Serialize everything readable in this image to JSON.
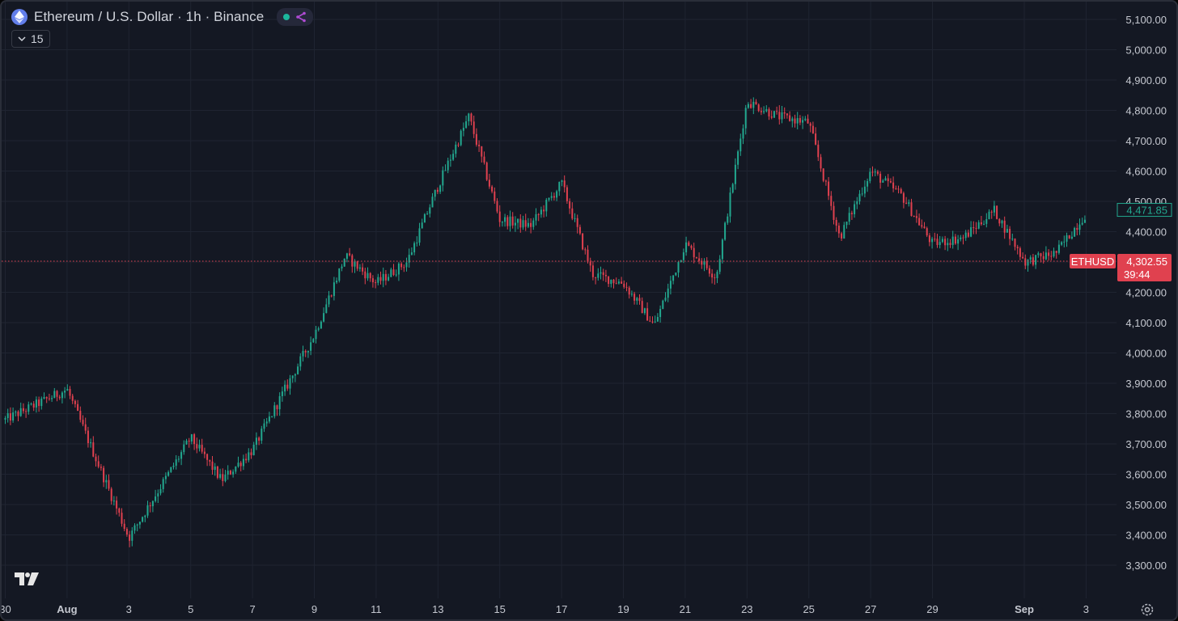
{
  "header": {
    "title": "Ethereum / U.S. Dollar · 1h · Binance",
    "status_icons": [
      "market-open-dot",
      "share-icon"
    ]
  },
  "indicator_toggle": {
    "icon": "chevron-down-icon",
    "value": "15"
  },
  "price_axis": {
    "ticks": [
      "5,100.00",
      "5,000.00",
      "4,900.00",
      "4,800.00",
      "4,700.00",
      "4,600.00",
      "4,500.00",
      "4,400.00",
      "4,300.00",
      "4,200.00",
      "4,100.00",
      "4,000.00",
      "3,900.00",
      "3,800.00",
      "3,700.00",
      "3,600.00",
      "3,500.00",
      "3,400.00",
      "3,300.00"
    ],
    "high_label": "4,471.85",
    "symbol_label": "ETHUSD",
    "last_price": "4,302.55",
    "countdown": "39:44"
  },
  "time_axis": {
    "ticks": [
      "30",
      "Aug",
      "3",
      "5",
      "7",
      "9",
      "11",
      "13",
      "15",
      "17",
      "19",
      "21",
      "23",
      "25",
      "27",
      "29",
      "Sep",
      "3"
    ]
  },
  "colors": {
    "up": "#22a88f",
    "down": "#e0414f",
    "background": "#141823",
    "grid": "#1f2431",
    "text": "#c5c8d0"
  },
  "chart_data": {
    "type": "candlestick",
    "title": "Ethereum / U.S. Dollar · 1h · Binance",
    "x_start": "Jul 30",
    "x_end": "Sep 3",
    "x_ticks": [
      "30",
      "Aug",
      "3",
      "5",
      "7",
      "9",
      "11",
      "13",
      "15",
      "17",
      "19",
      "21",
      "23",
      "25",
      "27",
      "29",
      "Sep",
      "3"
    ],
    "ylim": [
      3240,
      5140
    ],
    "y_ticks": [
      3300,
      3400,
      3500,
      3600,
      3700,
      3800,
      3900,
      4000,
      4100,
      4200,
      4300,
      4400,
      4500,
      4600,
      4700,
      4800,
      4900,
      5000,
      5100
    ],
    "last_price": 4302.55,
    "high_label": 4471.85,
    "grid": true,
    "approx_path": [
      {
        "x": "Jul 30",
        "close": 3780
      },
      {
        "x": "Aug 1",
        "close": 3880
      },
      {
        "x": "Aug 3",
        "close": 3390
      },
      {
        "x": "Aug 5",
        "close": 3720
      },
      {
        "x": "Aug 6",
        "close": 3580
      },
      {
        "x": "Aug 7",
        "close": 3680
      },
      {
        "x": "Aug 9",
        "close": 4060
      },
      {
        "x": "Aug 10",
        "close": 4320
      },
      {
        "x": "Aug 11",
        "close": 4230
      },
      {
        "x": "Aug 12",
        "close": 4300
      },
      {
        "x": "Aug 13",
        "close": 4550
      },
      {
        "x": "Aug 14",
        "close": 4780
      },
      {
        "x": "Aug 15",
        "close": 4440
      },
      {
        "x": "Aug 16",
        "close": 4420
      },
      {
        "x": "Aug 17",
        "close": 4560
      },
      {
        "x": "Aug 18",
        "close": 4260
      },
      {
        "x": "Aug 19",
        "close": 4230
      },
      {
        "x": "Aug 20",
        "close": 4090
      },
      {
        "x": "Aug 21",
        "close": 4360
      },
      {
        "x": "Aug 22",
        "close": 4250
      },
      {
        "x": "Aug 23",
        "close": 4830
      },
      {
        "x": "Aug 24",
        "close": 4780
      },
      {
        "x": "Aug 25",
        "close": 4760
      },
      {
        "x": "Aug 26",
        "close": 4380
      },
      {
        "x": "Aug 27",
        "close": 4600
      },
      {
        "x": "Aug 28",
        "close": 4520
      },
      {
        "x": "Aug 29",
        "close": 4360
      },
      {
        "x": "Aug 30",
        "close": 4380
      },
      {
        "x": "Aug 31",
        "close": 4470
      },
      {
        "x": "Sep 1",
        "close": 4300
      },
      {
        "x": "Sep 2",
        "close": 4330
      },
      {
        "x": "Sep 3",
        "close": 4465
      }
    ]
  }
}
